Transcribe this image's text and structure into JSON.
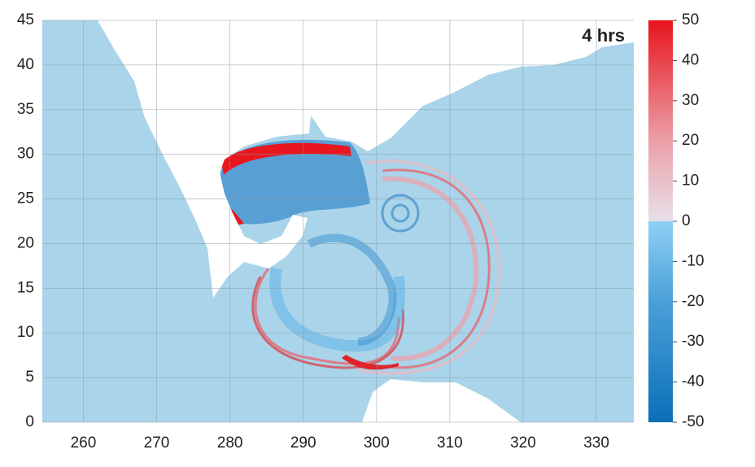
{
  "chart_data": {
    "type": "map",
    "annotation": "4 hrs",
    "xlim": [
      254.4,
      335.1
    ],
    "xticks": [
      260,
      270,
      280,
      290,
      300,
      310,
      320,
      330
    ],
    "ylim": [
      0,
      45
    ],
    "yticks": [
      0,
      5,
      10,
      15,
      20,
      25,
      30,
      35,
      40,
      45
    ],
    "grid": true,
    "clim": [
      -50,
      50
    ],
    "cticks": [
      -50,
      -40,
      -30,
      -20,
      -10,
      0,
      10,
      20,
      30,
      40,
      50
    ]
  }
}
